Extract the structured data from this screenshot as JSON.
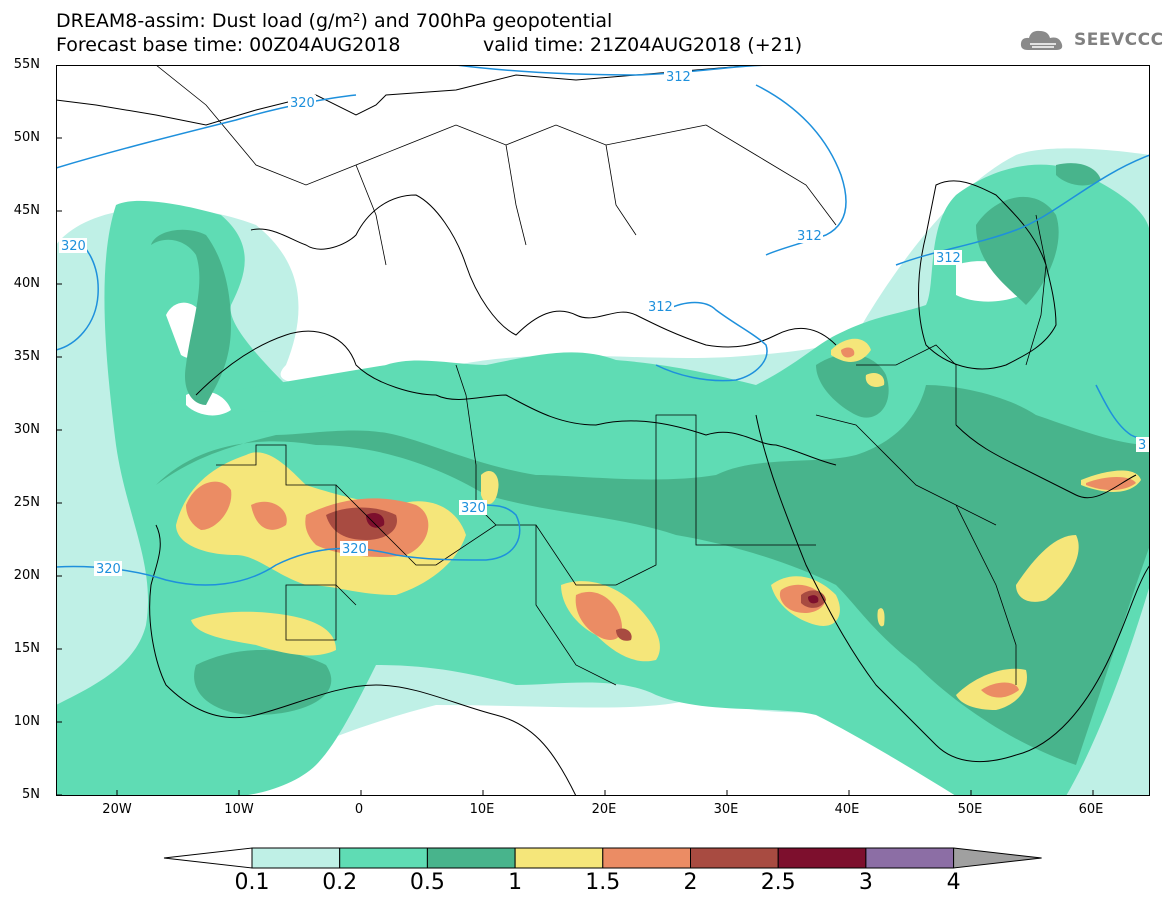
{
  "title_line1": "DREAM8-assim: Dust load (g/m²) and 700hPa geopotential",
  "title_line2_left": "Forecast base time: 00Z04AUG2018",
  "title_line2_right": "valid time: 21Z04AUG2018 (+21)",
  "logo_text": "SEEVCCC",
  "lat_labels": [
    "55N",
    "50N",
    "45N",
    "40N",
    "35N",
    "30N",
    "25N",
    "20N",
    "15N",
    "10N",
    "5N"
  ],
  "lon_labels": [
    "20W",
    "10W",
    "0",
    "10E",
    "20E",
    "30E",
    "40E",
    "50E",
    "60E"
  ],
  "contour_labels": {
    "c320a": "320",
    "c320b": "320",
    "c320c": "320",
    "c320d": "320",
    "c320e": "320",
    "c312a": "312",
    "c312b": "312",
    "c312c": "312",
    "c312d": "312",
    "c3": "3"
  },
  "colorbar": {
    "labels": [
      "0.1",
      "0.2",
      "0.5",
      "1",
      "1.5",
      "2",
      "2.5",
      "3",
      "4"
    ],
    "colors": [
      "#bff0e6",
      "#5fdcb4",
      "#48b48c",
      "#f5e67a",
      "#eb8c64",
      "#a84b41",
      "#7d0f2d",
      "#8c6ea5"
    ],
    "under_color": "#ffffff",
    "over_color": "#a0a0a0"
  },
  "map_colors": {
    "coast": "#000000",
    "contour": "#1e90dc"
  }
}
